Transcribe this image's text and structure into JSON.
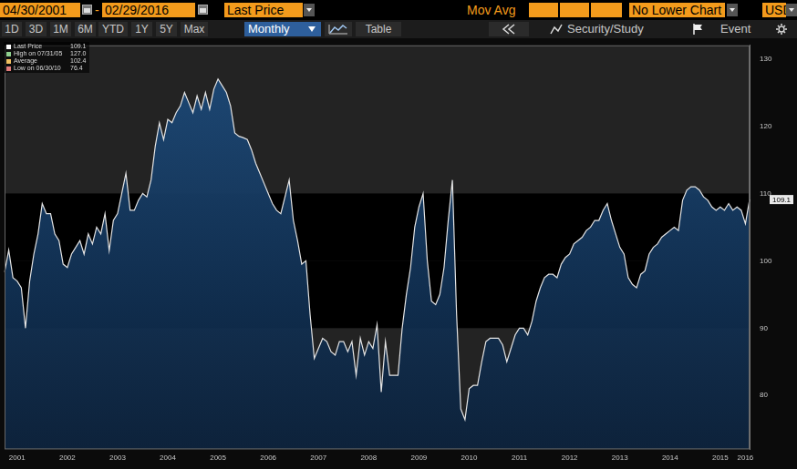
{
  "toolbar": {
    "start_date": "04/30/2001",
    "separator": "-",
    "end_date": "02/29/2016",
    "field": "Last Price",
    "mov_avg": "Mov Avg",
    "lower_chart": "No Lower Chart",
    "currency": "USD"
  },
  "periods": [
    "1D",
    "3D",
    "1M",
    "6M",
    "YTD",
    "1Y",
    "5Y",
    "Max"
  ],
  "frequency": "Monthly",
  "table_button": "Table",
  "study_button": "Security/Study",
  "event_button": "Event",
  "legend_box": [
    {
      "text": "Last Price",
      "value": 109.1,
      "value_label": "109.1"
    },
    {
      "text": "High on 07/31/05",
      "value": 127.0,
      "value_label": "127.0"
    },
    {
      "text": "Average",
      "value": 102.4,
      "value_label": "102.4"
    },
    {
      "text": "Low on 06/30/10",
      "value": 76.4,
      "value_label": "76.4"
    }
  ],
  "chart_data": {
    "type": "line",
    "categories": [
      null,
      null,
      null,
      "2001",
      null,
      null,
      null,
      null,
      null,
      null,
      null,
      null,
      null,
      null,
      null,
      "2002",
      null,
      null,
      null,
      null,
      null,
      null,
      null,
      null,
      null,
      null,
      null,
      "2003",
      null,
      null,
      null,
      null,
      null,
      null,
      null,
      null,
      null,
      null,
      null,
      "2004",
      null,
      null,
      null,
      null,
      null,
      null,
      null,
      null,
      null,
      null,
      null,
      "2005",
      null,
      null,
      null,
      null,
      null,
      null,
      null,
      null,
      null,
      null,
      null,
      "2006",
      null,
      null,
      null,
      null,
      null,
      null,
      null,
      null,
      null,
      null,
      null,
      "2007",
      null,
      null,
      null,
      null,
      null,
      null,
      null,
      null,
      null,
      null,
      null,
      "2008",
      null,
      null,
      null,
      null,
      null,
      null,
      null,
      null,
      null,
      null,
      null,
      "2009",
      null,
      null,
      null,
      null,
      null,
      null,
      null,
      null,
      null,
      null,
      null,
      "2010",
      null,
      null,
      null,
      null,
      null,
      null,
      null,
      null,
      null,
      null,
      null,
      "2011",
      null,
      null,
      null,
      null,
      null,
      null,
      null,
      null,
      null,
      null,
      null,
      "2012",
      null,
      null,
      null,
      null,
      null,
      null,
      null,
      null,
      null,
      null,
      null,
      "2013",
      null,
      null,
      null,
      null,
      null,
      null,
      null,
      null,
      null,
      null,
      null,
      "2014",
      null,
      null,
      null,
      null,
      null,
      null,
      null,
      null,
      null,
      null,
      null,
      "2015",
      null,
      null,
      null,
      null,
      null,
      "2016",
      null
    ],
    "values": [
      98.3,
      101.6,
      97.5,
      97,
      96,
      90,
      97,
      101,
      104,
      108.5,
      107,
      107,
      104,
      103,
      99.5,
      99,
      101,
      102,
      103,
      101,
      104,
      102.5,
      105,
      104,
      107,
      101.5,
      106,
      107,
      110,
      113,
      107.5,
      107.5,
      109,
      110,
      109.5,
      112,
      117,
      120.5,
      118,
      121,
      120.5,
      122,
      123,
      125,
      123.5,
      122,
      124.5,
      122.5,
      125,
      122.5,
      125.5,
      127,
      126,
      125,
      123,
      119,
      118.5,
      118.3,
      118,
      116.5,
      114.5,
      113,
      111.5,
      110,
      108.5,
      107.5,
      107,
      109.5,
      112,
      106,
      103,
      99.5,
      100,
      92,
      85.5,
      87,
      88.5,
      88,
      86.5,
      86,
      88,
      88,
      86.5,
      88,
      83,
      88.5,
      86,
      88,
      87,
      90.5,
      80.5,
      88,
      83,
      83,
      83,
      90,
      95,
      99,
      105,
      108,
      110,
      100,
      94,
      93.5,
      95,
      99,
      106,
      112,
      92,
      78,
      76.4,
      81,
      81.5,
      81.5,
      85,
      88,
      88.5,
      88.5,
      88.5,
      87.5,
      85,
      87,
      89,
      90,
      90,
      89,
      91,
      94,
      96,
      97.5,
      98,
      98,
      97.5,
      99.5,
      100.5,
      101,
      102.5,
      103,
      103.5,
      104.5,
      105,
      106,
      106,
      107.5,
      108.5,
      106,
      104,
      102,
      101,
      97.5,
      96.5,
      96,
      98,
      98.5,
      101,
      102,
      102.5,
      103.5,
      104,
      104.5,
      105,
      104.5,
      109,
      110.5,
      111,
      111,
      110.5,
      109.5,
      109,
      108,
      107.5,
      108,
      107.5,
      108.5,
      107.5,
      108,
      107.5,
      105.5,
      109.1
    ],
    "color": "#1e4a78",
    "ylim": [
      72,
      132
    ],
    "yticks": [
      80,
      90,
      100,
      110,
      120,
      130
    ],
    "grid": false
  }
}
